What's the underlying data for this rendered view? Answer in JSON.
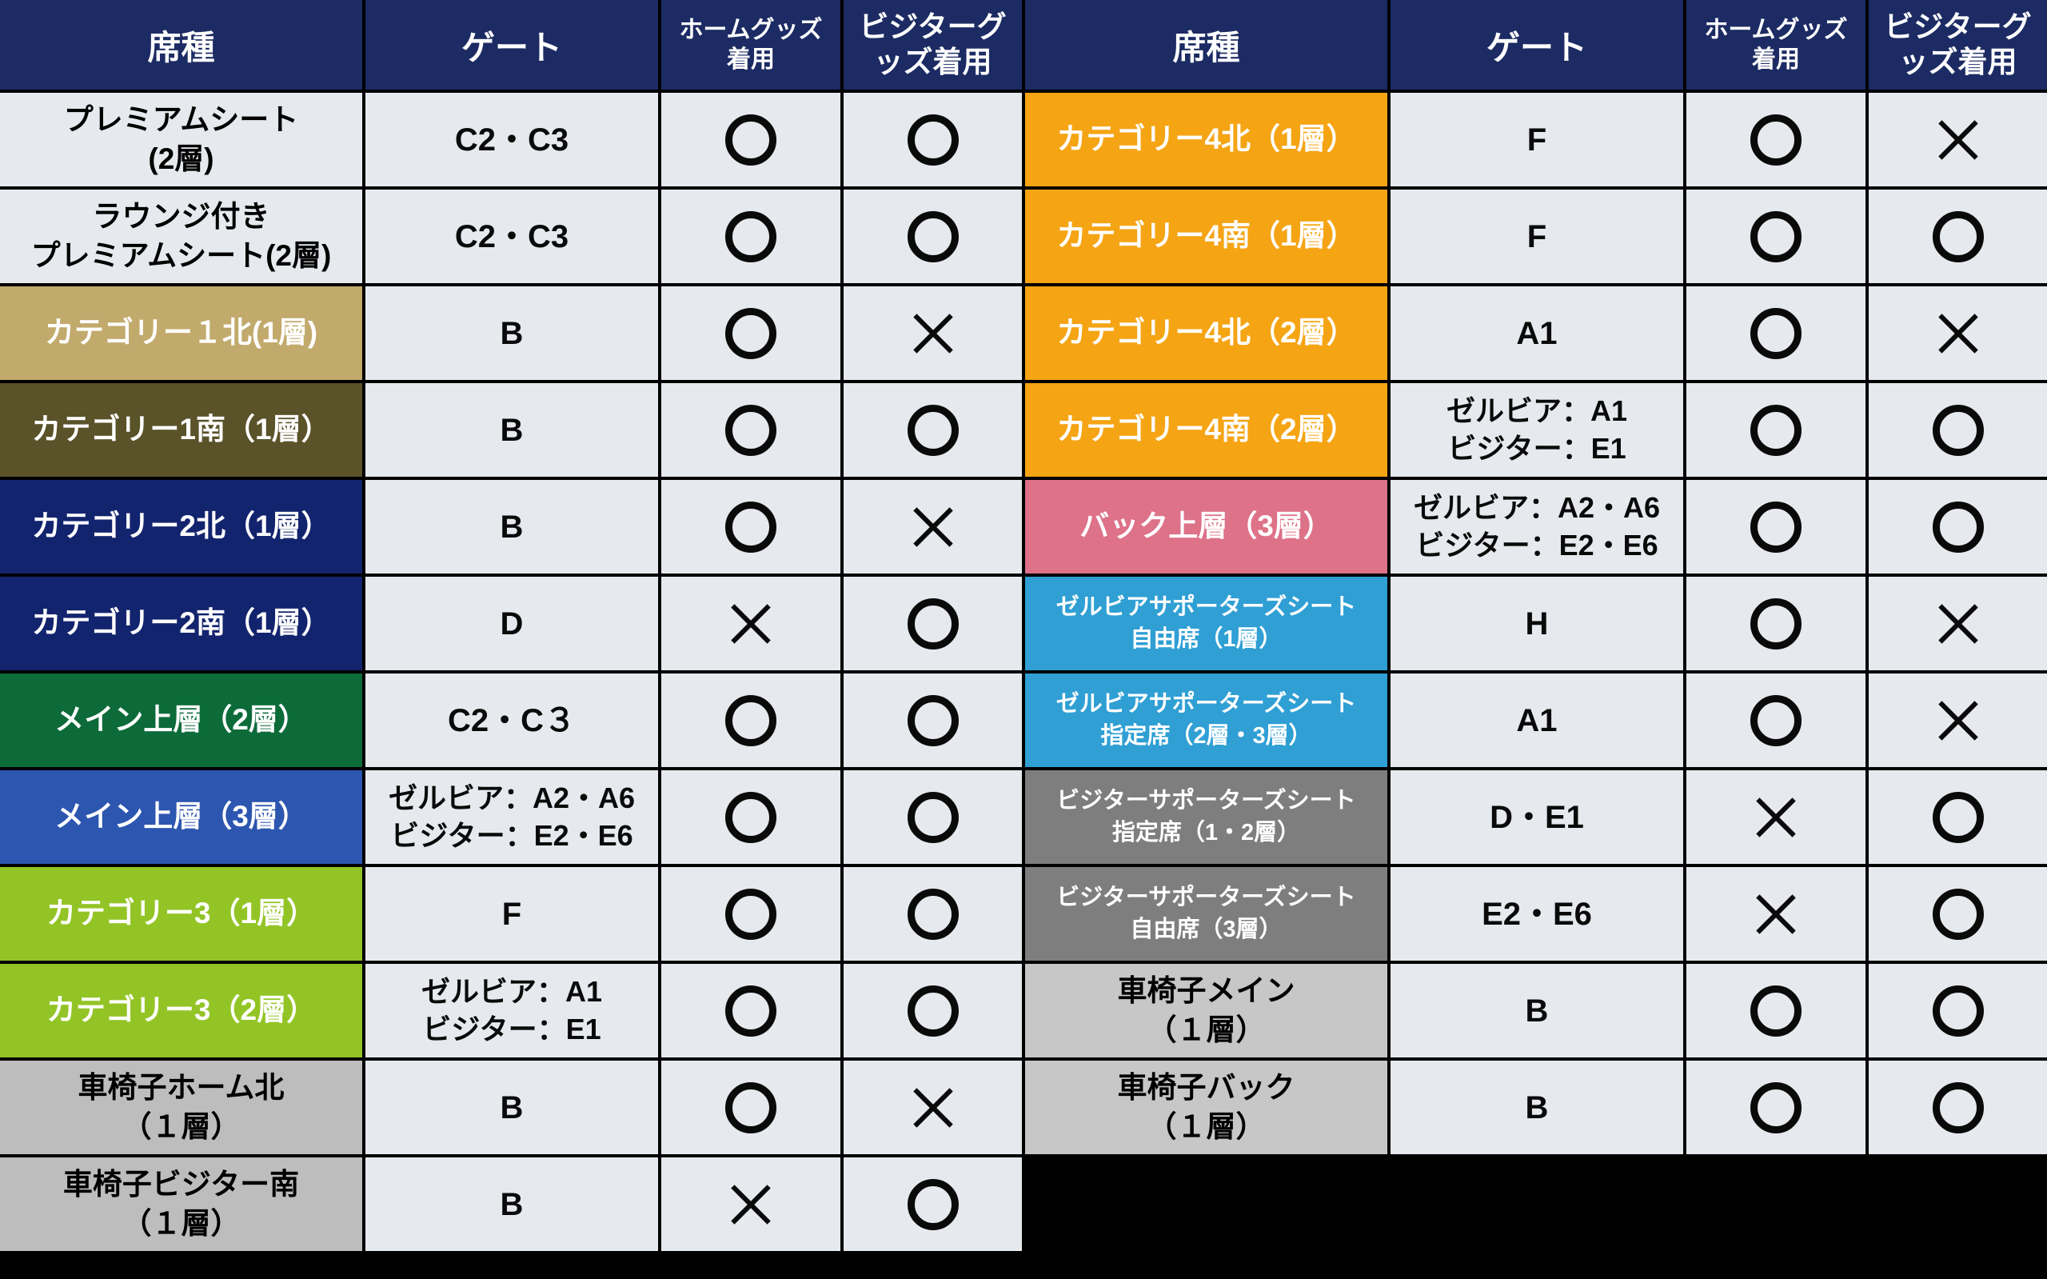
{
  "page": {
    "background": "#000000",
    "cell_light": "#e6e9ed",
    "header_bg": "#1c2b63",
    "header_fg": "#ffffff"
  },
  "legend": {
    "allowed_mark": "○",
    "not_allowed_mark": "×"
  },
  "header": {
    "seat": "席種",
    "gate": "ゲート",
    "home_lines": [
      "ホームグッズ",
      "着用"
    ],
    "visitor_lines": [
      "ビジターグ",
      "ッズ着用"
    ]
  },
  "left": {
    "rows": [
      {
        "label_lines": [
          "プレミアムシート",
          "(2層)"
        ],
        "gate_lines": [
          "C2・C3"
        ],
        "home": "○",
        "visitor": "○",
        "bg": "#e6e9ed",
        "fg": "#000000"
      },
      {
        "label_lines": [
          "ラウンジ付き",
          "プレミアムシート(2層)"
        ],
        "gate_lines": [
          "C2・C3"
        ],
        "home": "○",
        "visitor": "○",
        "bg": "#e6e9ed",
        "fg": "#000000"
      },
      {
        "label_lines": [
          "カテゴリー１北(1層)"
        ],
        "gate_lines": [
          "B"
        ],
        "home": "○",
        "visitor": "×",
        "bg": "#c1aa6c",
        "fg": "#ffffff"
      },
      {
        "label_lines": [
          "カテゴリー1南（1層）"
        ],
        "gate_lines": [
          "B"
        ],
        "home": "○",
        "visitor": "○",
        "bg": "#5a5229",
        "fg": "#ffffff"
      },
      {
        "label_lines": [
          "カテゴリー2北（1層）"
        ],
        "gate_lines": [
          "B"
        ],
        "home": "○",
        "visitor": "×",
        "bg": "#13246e",
        "fg": "#ffffff"
      },
      {
        "label_lines": [
          "カテゴリー2南（1層）"
        ],
        "gate_lines": [
          "D"
        ],
        "home": "×",
        "visitor": "○",
        "bg": "#13246e",
        "fg": "#ffffff"
      },
      {
        "label_lines": [
          "メイン上層（2層）"
        ],
        "gate_lines": [
          "C2・C３"
        ],
        "home": "○",
        "visitor": "○",
        "bg": "#0c6b39",
        "fg": "#ffffff"
      },
      {
        "label_lines": [
          "メイン上層（3層）"
        ],
        "gate_lines": [
          "ゼルビア：A2・A6",
          "ビジター：E2・E6"
        ],
        "home": "○",
        "visitor": "○",
        "bg": "#2d56b0",
        "fg": "#ffffff"
      },
      {
        "label_lines": [
          "カテゴリー3（1層）"
        ],
        "gate_lines": [
          "F"
        ],
        "home": "○",
        "visitor": "○",
        "bg": "#93c426",
        "fg": "#ffffff"
      },
      {
        "label_lines": [
          "カテゴリー3（2層）"
        ],
        "gate_lines": [
          "ゼルビア：A1",
          "ビジター：E1"
        ],
        "home": "○",
        "visitor": "○",
        "bg": "#93c426",
        "fg": "#ffffff"
      },
      {
        "label_lines": [
          "車椅子ホーム北",
          "（１層）"
        ],
        "gate_lines": [
          "B"
        ],
        "home": "○",
        "visitor": "×",
        "bg": "#bdbdbd",
        "fg": "#000000"
      },
      {
        "label_lines": [
          "車椅子ビジター南",
          "（１層）"
        ],
        "gate_lines": [
          "B"
        ],
        "home": "×",
        "visitor": "○",
        "bg": "#bdbdbd",
        "fg": "#000000"
      }
    ]
  },
  "right": {
    "rows": [
      {
        "label_lines": [
          "カテゴリー4北（1層）"
        ],
        "gate_lines": [
          "F"
        ],
        "home": "○",
        "visitor": "×",
        "bg": "#f5a414",
        "fg": "#ffffff"
      },
      {
        "label_lines": [
          "カテゴリー4南（1層）"
        ],
        "gate_lines": [
          "F"
        ],
        "home": "○",
        "visitor": "○",
        "bg": "#f5a414",
        "fg": "#ffffff"
      },
      {
        "label_lines": [
          "カテゴリー4北（2層）"
        ],
        "gate_lines": [
          "A1"
        ],
        "home": "○",
        "visitor": "×",
        "bg": "#f5a414",
        "fg": "#ffffff"
      },
      {
        "label_lines": [
          "カテゴリー4南（2層）"
        ],
        "gate_lines": [
          "ゼルビア：A1",
          "ビジター：E1"
        ],
        "home": "○",
        "visitor": "○",
        "bg": "#f5a414",
        "fg": "#ffffff"
      },
      {
        "label_lines": [
          "バック上層（3層）"
        ],
        "gate_lines": [
          "ゼルビア：A2・A6",
          "ビジター：E2・E6"
        ],
        "home": "○",
        "visitor": "○",
        "bg": "#dd7289",
        "fg": "#ffffff"
      },
      {
        "label_lines": [
          "ゼルビアサポーターズシート",
          "自由席（1層）"
        ],
        "gate_lines": [
          "H"
        ],
        "home": "○",
        "visitor": "×",
        "bg": "#2f9fd4",
        "fg": "#ffffff"
      },
      {
        "label_lines": [
          "ゼルビアサポーターズシート",
          "指定席（2層・3層）"
        ],
        "gate_lines": [
          "A1"
        ],
        "home": "○",
        "visitor": "×",
        "bg": "#2f9fd4",
        "fg": "#ffffff"
      },
      {
        "label_lines": [
          "ビジターサポーターズシート",
          "指定席（1・2層）"
        ],
        "gate_lines": [
          "D・E1"
        ],
        "home": "×",
        "visitor": "○",
        "bg": "#7e7e7e",
        "fg": "#ffffff"
      },
      {
        "label_lines": [
          "ビジターサポーターズシート",
          "自由席（3層）"
        ],
        "gate_lines": [
          "E2・E6"
        ],
        "home": "×",
        "visitor": "○",
        "bg": "#7e7e7e",
        "fg": "#ffffff"
      },
      {
        "label_lines": [
          "車椅子メイン",
          "（１層）"
        ],
        "gate_lines": [
          "B"
        ],
        "home": "○",
        "visitor": "○",
        "bg": "#c7c7c7",
        "fg": "#000000"
      },
      {
        "label_lines": [
          "車椅子バック",
          "（１層）"
        ],
        "gate_lines": [
          "B"
        ],
        "home": "○",
        "visitor": "○",
        "bg": "#c7c7c7",
        "fg": "#000000"
      }
    ]
  }
}
